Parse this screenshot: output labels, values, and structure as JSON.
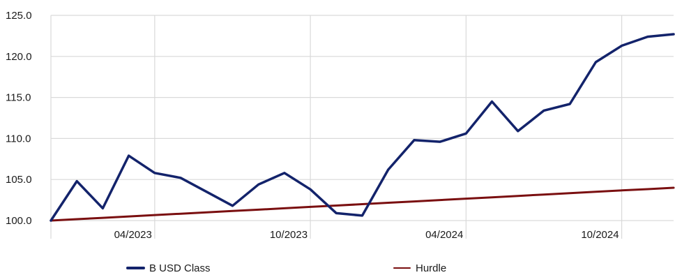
{
  "chart_data": {
    "type": "line",
    "title": "",
    "xlabel": "",
    "ylabel": "",
    "ylim": [
      100,
      125
    ],
    "yticks": [
      "100.0",
      "105.0",
      "110.0",
      "115.0",
      "120.0",
      "125.0"
    ],
    "xticks": [
      "04/2023",
      "10/2023",
      "04/2024",
      "10/2024"
    ],
    "grid": true,
    "legend_placement": "bottom",
    "x": [
      "2022-12",
      "2023-01",
      "2023-02",
      "2023-03",
      "2023-04",
      "2023-05",
      "2023-06",
      "2023-07",
      "2023-08",
      "2023-09",
      "2023-10",
      "2023-11",
      "2023-12",
      "2024-01",
      "2024-02",
      "2024-03",
      "2024-04",
      "2024-05",
      "2024-06",
      "2024-07",
      "2024-08",
      "2024-09",
      "2024-10",
      "2024-11",
      "2024-12"
    ],
    "series": [
      {
        "name": "B USD Class",
        "color": "#13236b",
        "values": [
          100.0,
          104.8,
          101.5,
          107.9,
          105.8,
          105.2,
          103.5,
          101.8,
          104.4,
          105.8,
          103.8,
          100.9,
          100.6,
          106.2,
          109.8,
          109.6,
          110.6,
          114.5,
          110.9,
          113.4,
          114.2,
          119.3,
          121.3,
          122.4,
          122.7
        ]
      },
      {
        "name": "Hurdle",
        "color": "#7a0f10",
        "values": [
          100.0,
          100.17,
          100.33,
          100.5,
          100.67,
          100.83,
          101.0,
          101.17,
          101.33,
          101.5,
          101.67,
          101.83,
          102.0,
          102.17,
          102.33,
          102.5,
          102.67,
          102.83,
          103.0,
          103.17,
          103.33,
          103.5,
          103.67,
          103.83,
          104.0
        ]
      }
    ]
  }
}
